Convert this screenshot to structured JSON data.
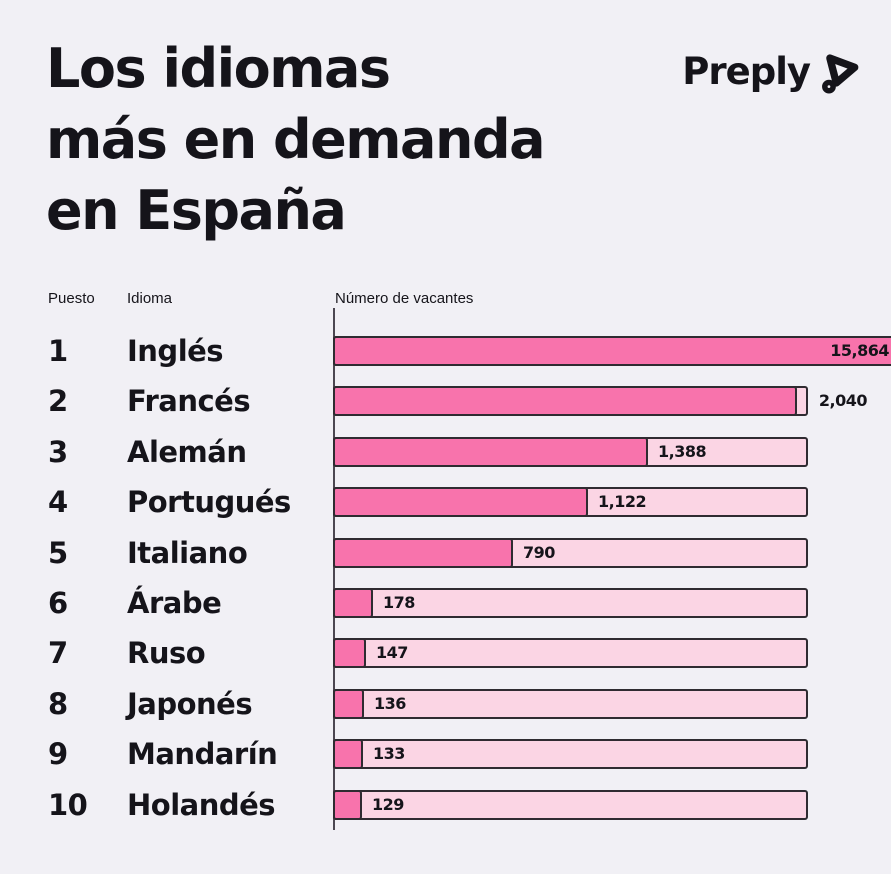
{
  "page": {
    "background": "#F1F0F5"
  },
  "header": {
    "title_lines": [
      "Los idiomas",
      "más en demanda",
      "en España"
    ],
    "title_full": "Los idiomas más en demanda en España",
    "logo_text": "Preply"
  },
  "table": {
    "columns": {
      "rank": "Puesto",
      "language": "Idioma",
      "value": "Número de vacantes"
    }
  },
  "chart_data": {
    "type": "bar",
    "orientation": "horizontal",
    "title": "Los idiomas más en demanda en España",
    "xlabel": "Número de vacantes",
    "ylabel": "Idioma",
    "axis_max": 2090,
    "grid": false,
    "legend": false,
    "colors": {
      "bar_fill": "#F873AC",
      "bar_track": "#FBD5E4",
      "bar_border": "#2F2B31",
      "axis_line": "#4C4751",
      "text": "#15141A"
    },
    "rows": [
      {
        "rank": "1",
        "language": "Inglés",
        "value": 15864,
        "value_label": "15,864",
        "label_inside": true
      },
      {
        "rank": "2",
        "language": "Francés",
        "value": 2040,
        "value_label": "2,040",
        "label_inside": true
      },
      {
        "rank": "3",
        "language": "Alemán",
        "value": 1388,
        "value_label": "1,388",
        "label_inside": false
      },
      {
        "rank": "4",
        "language": "Portugués",
        "value": 1122,
        "value_label": "1,122",
        "label_inside": false
      },
      {
        "rank": "5",
        "language": "Italiano",
        "value": 790,
        "value_label": "790",
        "label_inside": false
      },
      {
        "rank": "6",
        "language": "Árabe",
        "value": 178,
        "value_label": "178",
        "label_inside": false
      },
      {
        "rank": "7",
        "language": "Ruso",
        "value": 147,
        "value_label": "147",
        "label_inside": false
      },
      {
        "rank": "8",
        "language": "Japonés",
        "value": 136,
        "value_label": "136",
        "label_inside": false
      },
      {
        "rank": "9",
        "language": "Mandarín",
        "value": 133,
        "value_label": "133",
        "label_inside": false
      },
      {
        "rank": "10",
        "language": "Holandés",
        "value": 129,
        "value_label": "129",
        "label_inside": false
      }
    ]
  }
}
